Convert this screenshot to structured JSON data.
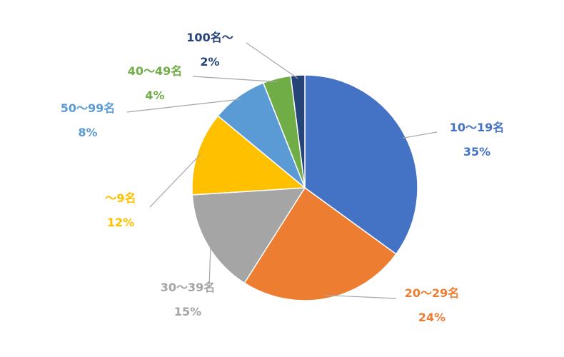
{
  "chart_data": {
    "type": "pie",
    "title": "",
    "slices": [
      {
        "name": "10〜19名",
        "value": 35,
        "value_label": "35%",
        "color": "#4472C4"
      },
      {
        "name": "20〜29名",
        "value": 24,
        "value_label": "24%",
        "color": "#ED7D31"
      },
      {
        "name": "30〜39名",
        "value": 15,
        "value_label": "15%",
        "color": "#A5A5A5"
      },
      {
        "name": "〜9名",
        "value": 12,
        "value_label": "12%",
        "color": "#FFC000"
      },
      {
        "name": "50〜99名",
        "value": 8,
        "value_label": "8%",
        "color": "#5B9BD5"
      },
      {
        "name": "40〜49名",
        "value": 4,
        "value_label": "4%",
        "color": "#70AD47"
      },
      {
        "name": "100名〜",
        "value": 2,
        "value_label": "2%",
        "color": "#264478"
      }
    ],
    "leader_line_color": "#A6A6A6"
  }
}
